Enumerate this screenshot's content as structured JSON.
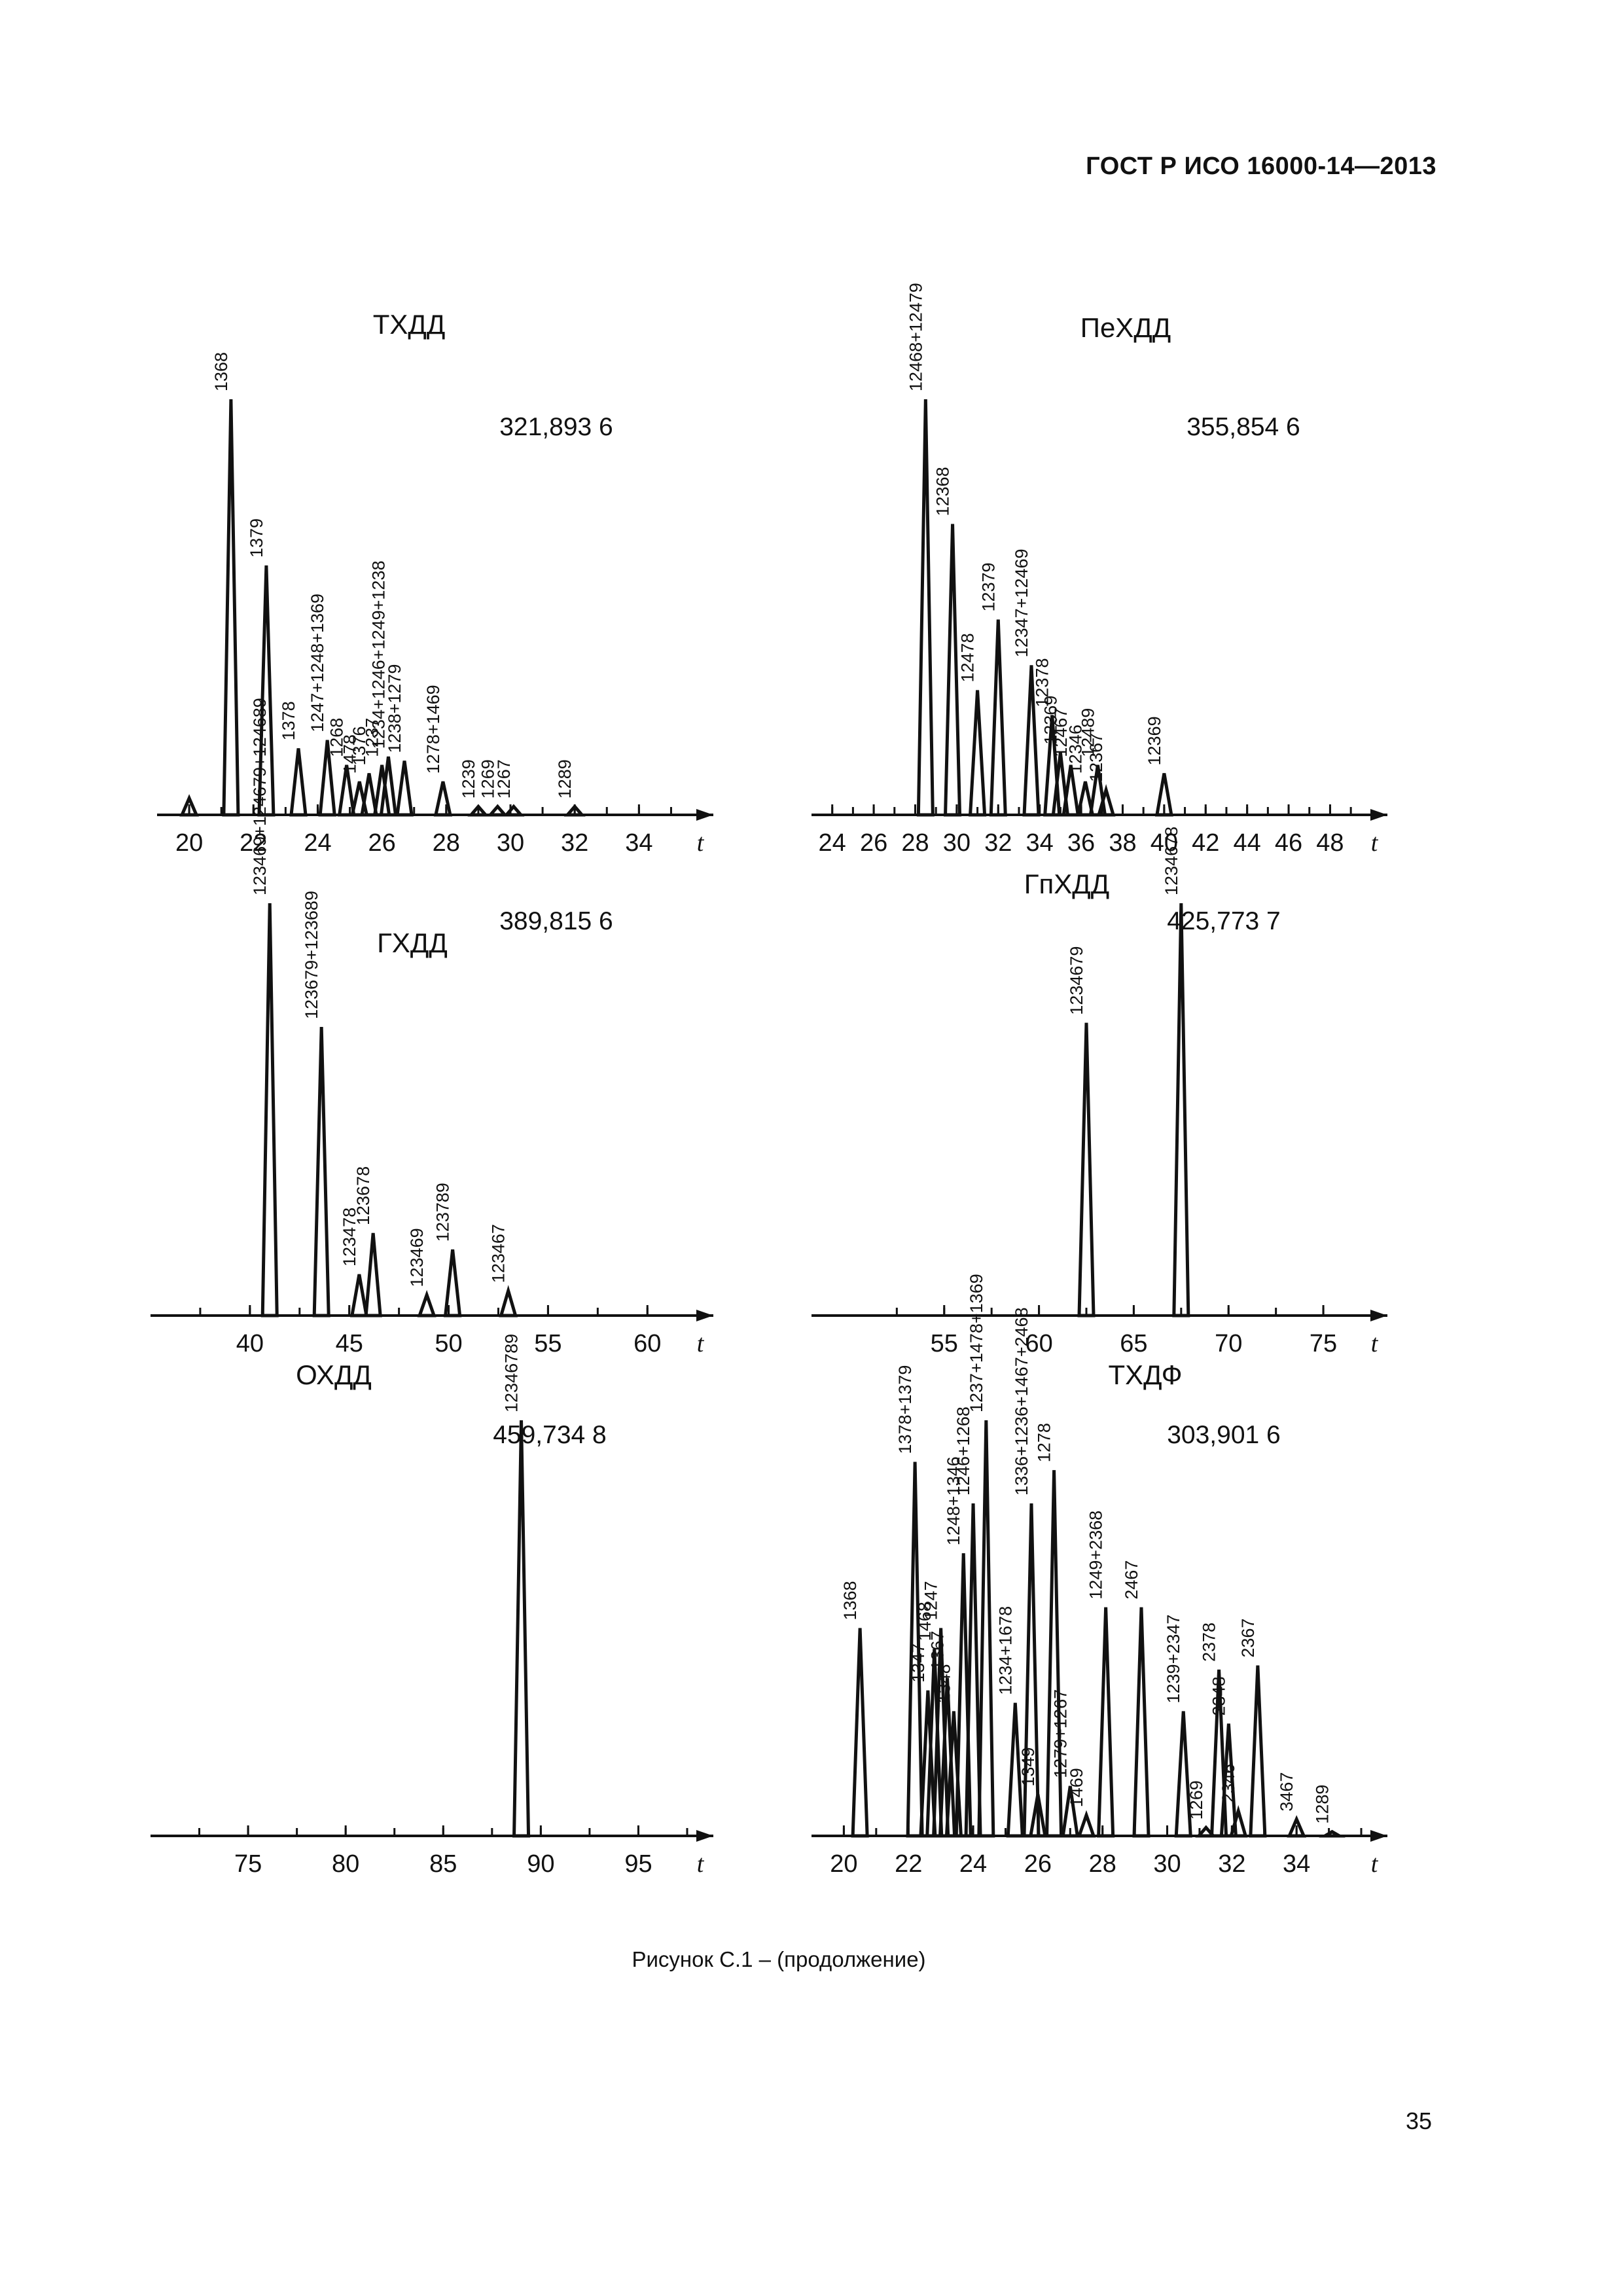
{
  "header": "ГОСТ Р ИСО 16000-14—2013",
  "caption": "Рисунок С.1 – (продолжение)",
  "page_number": "35",
  "chart_data": [
    {
      "type": "line",
      "title": "ТХДД",
      "mass": "321,893 6",
      "axis_var": "t",
      "xlim": [
        19,
        35.5
      ],
      "ticks": [
        20,
        22,
        24,
        26,
        28,
        30,
        32,
        34
      ],
      "tick_labels": [
        "20",
        "22",
        "24",
        "26",
        "28",
        "30",
        "32",
        "34"
      ],
      "peaks": [
        {
          "x": 20.0,
          "h": 0.04
        },
        {
          "x": 21.3,
          "h": 1.0,
          "label": "1368"
        },
        {
          "x": 22.4,
          "h": 0.6,
          "label": "1379"
        },
        {
          "x": 23.4,
          "h": 0.16,
          "label": "1378"
        },
        {
          "x": 24.3,
          "h": 0.18,
          "label": "1247+1248+1369"
        },
        {
          "x": 24.9,
          "h": 0.12,
          "label": "1268"
        },
        {
          "x": 25.3,
          "h": 0.08,
          "label": "1478"
        },
        {
          "x": 25.6,
          "h": 0.1,
          "label": "1376"
        },
        {
          "x": 26.0,
          "h": 0.12,
          "label": "1237"
        },
        {
          "x": 26.2,
          "h": 0.14,
          "label": "1234+1246+1249+1238"
        },
        {
          "x": 26.7,
          "h": 0.13,
          "label": "1238+1279"
        },
        {
          "x": 27.9,
          "h": 0.08,
          "label": "1278+1469"
        },
        {
          "x": 29.0,
          "h": 0.02,
          "label": "1239"
        },
        {
          "x": 29.6,
          "h": 0.02,
          "label": "1269"
        },
        {
          "x": 30.1,
          "h": 0.02,
          "label": "1267"
        },
        {
          "x": 32.0,
          "h": 0.02,
          "label": "1289"
        }
      ]
    },
    {
      "type": "line",
      "title": "ПеХДД",
      "mass": "355,854 6",
      "axis_var": "t",
      "xlim": [
        23,
        49.5
      ],
      "ticks": [
        24,
        26,
        28,
        30,
        32,
        34,
        36,
        38,
        40,
        42,
        44,
        46,
        48
      ],
      "tick_labels": [
        "24",
        "26",
        "28",
        "30",
        "32",
        "34",
        "36",
        "38",
        "40",
        "42",
        "44",
        "46",
        "48"
      ],
      "peaks": [
        {
          "x": 28.5,
          "h": 1.0,
          "label": "12468+12479"
        },
        {
          "x": 29.8,
          "h": 0.7,
          "label": "12368"
        },
        {
          "x": 31.0,
          "h": 0.3,
          "label": "12478"
        },
        {
          "x": 32.0,
          "h": 0.47,
          "label": "12379"
        },
        {
          "x": 33.6,
          "h": 0.36,
          "label": "12347+12469"
        },
        {
          "x": 34.6,
          "h": 0.24,
          "label": "12378"
        },
        {
          "x": 35.0,
          "h": 0.15,
          "label": "12369"
        },
        {
          "x": 35.5,
          "h": 0.12,
          "label": "12467"
        },
        {
          "x": 36.2,
          "h": 0.08,
          "label": "12346"
        },
        {
          "x": 36.8,
          "h": 0.12,
          "label": "12489"
        },
        {
          "x": 37.2,
          "h": 0.06,
          "label": "12367"
        },
        {
          "x": 40.0,
          "h": 0.1,
          "label": "12369"
        }
      ]
    },
    {
      "type": "line",
      "title": "ГХДД",
      "mass": "389,815 6",
      "axis_var": "t",
      "xlim": [
        35,
        62
      ],
      "ticks": [
        40,
        45,
        50,
        55,
        60
      ],
      "tick_labels": [
        "40",
        "45",
        "50",
        "55",
        "60"
      ],
      "peaks": [
        {
          "x": 41.0,
          "h": 1.0,
          "label": "123469+124679+124689"
        },
        {
          "x": 43.6,
          "h": 0.7,
          "label": "123679+123689"
        },
        {
          "x": 45.5,
          "h": 0.1,
          "label": "123478"
        },
        {
          "x": 46.2,
          "h": 0.2,
          "label": "123678"
        },
        {
          "x": 48.9,
          "h": 0.05,
          "label": "123469"
        },
        {
          "x": 50.2,
          "h": 0.16,
          "label": "123789"
        },
        {
          "x": 53.0,
          "h": 0.06,
          "label": "123467"
        }
      ]
    },
    {
      "type": "line",
      "title": "ГпХДД",
      "mass": "425,773 7",
      "axis_var": "t",
      "xlim": [
        48,
        77
      ],
      "ticks": [
        55,
        60,
        65,
        70,
        75
      ],
      "tick_labels": [
        "55",
        "60",
        "65",
        "70",
        "75"
      ],
      "peaks": [
        {
          "x": 62.5,
          "h": 0.71,
          "label": "1234679"
        },
        {
          "x": 67.5,
          "h": 1.0,
          "label": "1234678"
        }
      ]
    },
    {
      "type": "line",
      "title": "ОХДД",
      "mass": "459,734 8",
      "axis_var": "t",
      "xlim": [
        70,
        97.5
      ],
      "ticks": [
        75,
        80,
        85,
        90,
        95
      ],
      "tick_labels": [
        "75",
        "80",
        "85",
        "90",
        "95"
      ],
      "peaks": [
        {
          "x": 89.0,
          "h": 1.0,
          "label": "12346789"
        }
      ]
    },
    {
      "type": "line",
      "title": "ТХДФ",
      "mass": "303,901 6",
      "axis_var": "t",
      "xlim": [
        19,
        36
      ],
      "ticks": [
        20,
        22,
        24,
        26,
        28,
        30,
        32,
        34
      ],
      "tick_labels": [
        "20",
        "22",
        "24",
        "26",
        "28",
        "30",
        "32",
        "34"
      ],
      "peaks": [
        {
          "x": 20.5,
          "h": 0.5,
          "label": "1368"
        },
        {
          "x": 22.2,
          "h": 0.9,
          "label": "1378+1379"
        },
        {
          "x": 22.6,
          "h": 0.35,
          "label": "1347"
        },
        {
          "x": 22.8,
          "h": 0.45,
          "label": "1468"
        },
        {
          "x": 23.0,
          "h": 0.5,
          "label": "1247"
        },
        {
          "x": 23.2,
          "h": 0.38,
          "label": "1367"
        },
        {
          "x": 23.4,
          "h": 0.3,
          "label": "1348"
        },
        {
          "x": 23.7,
          "h": 0.68,
          "label": "1248+1346"
        },
        {
          "x": 24.0,
          "h": 0.8,
          "label": "1246+1268"
        },
        {
          "x": 24.4,
          "h": 1.0,
          "label": "1237+1478+1369"
        },
        {
          "x": 25.3,
          "h": 0.32,
          "label": "1234+1678"
        },
        {
          "x": 25.8,
          "h": 0.8,
          "label": "1336+1236+1467+2468"
        },
        {
          "x": 26.5,
          "h": 0.88,
          "label": "1278"
        },
        {
          "x": 26.0,
          "h": 0.1,
          "label": "1349"
        },
        {
          "x": 27.0,
          "h": 0.12,
          "label": "1279+1267"
        },
        {
          "x": 27.5,
          "h": 0.05,
          "label": "1469"
        },
        {
          "x": 28.1,
          "h": 0.55,
          "label": "1249+2368"
        },
        {
          "x": 29.2,
          "h": 0.55,
          "label": "2467"
        },
        {
          "x": 30.5,
          "h": 0.3,
          "label": "1239+2347"
        },
        {
          "x": 31.2,
          "h": 0.02,
          "label": "1269"
        },
        {
          "x": 31.6,
          "h": 0.4,
          "label": "2378"
        },
        {
          "x": 31.9,
          "h": 0.27,
          "label": "2348"
        },
        {
          "x": 32.2,
          "h": 0.06,
          "label": "2346"
        },
        {
          "x": 32.8,
          "h": 0.41,
          "label": "2367"
        },
        {
          "x": 34.0,
          "h": 0.04,
          "label": "3467"
        },
        {
          "x": 35.1,
          "h": 0.01,
          "label": "1289"
        }
      ]
    }
  ]
}
